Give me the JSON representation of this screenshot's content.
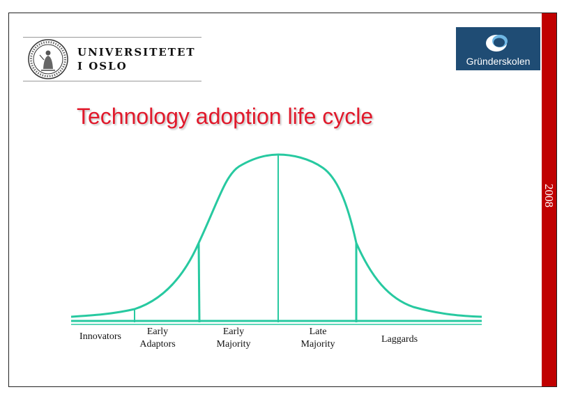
{
  "header": {
    "university": {
      "line1": "UNIVERSITETET",
      "line2": "I OSLO"
    },
    "partner_logo": {
      "text": "Gründerskolen"
    }
  },
  "title": "Technology adoption life cycle",
  "side_band": {
    "text": "2008"
  },
  "diagram": {
    "segments": [
      {
        "line1": "Innovators",
        "line2": ""
      },
      {
        "line1": "Early",
        "line2": "Adaptors"
      },
      {
        "line1": "Early",
        "line2": "Majority"
      },
      {
        "line1": "Late",
        "line2": "Majority"
      },
      {
        "line1": "Laggards",
        "line2": ""
      }
    ]
  },
  "colors": {
    "title": "#e1192b",
    "curve": "#27c9a0",
    "side_band": "#c00000",
    "partner_logo_bg": "#1f4c74"
  }
}
